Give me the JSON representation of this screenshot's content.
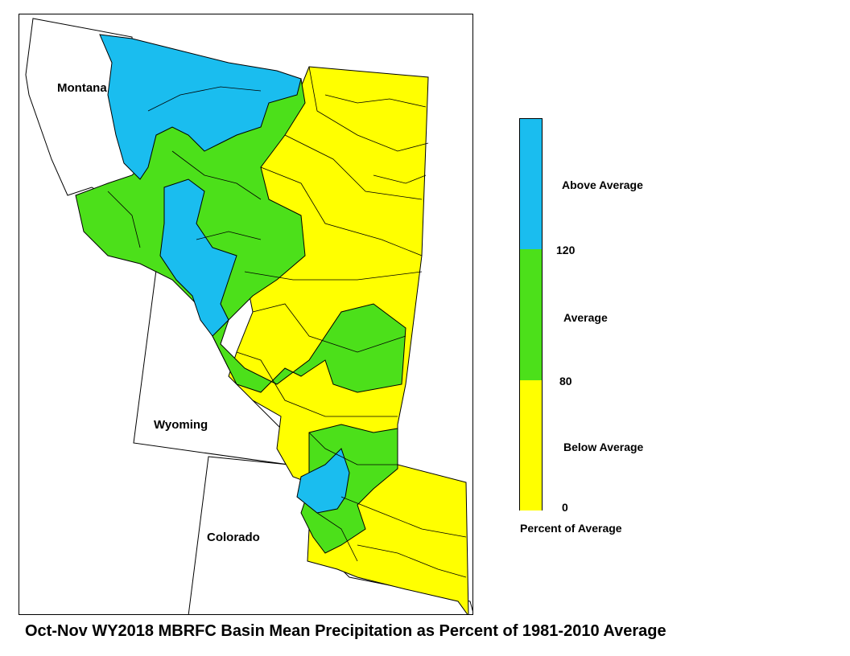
{
  "map": {
    "state_labels": {
      "montana": "Montana",
      "wyoming": "Wyoming",
      "colorado": "Colorado"
    },
    "category_colors": {
      "above": "#1ABDEF",
      "average": "#4CE01A",
      "below": "#FFFF00"
    }
  },
  "legend": {
    "categories": [
      {
        "label": "Above Average",
        "color": "#1ABDEF",
        "range": "120+"
      },
      {
        "label": "Average",
        "color": "#4CE01A",
        "range": "80-120"
      },
      {
        "label": "Below Average",
        "color": "#FFFF00",
        "range": "0-80"
      }
    ],
    "tick_labels": [
      "120",
      "80",
      "0"
    ],
    "above_label": "Above Average",
    "average_label": "Average",
    "below_label": "Below Average",
    "tick_120": "120",
    "tick_80": "80",
    "tick_0": "0",
    "title": "Percent of Average"
  },
  "caption": "Oct-Nov WY2018 MBRFC Basin Mean Precipitation as Percent of 1981-2010 Average"
}
